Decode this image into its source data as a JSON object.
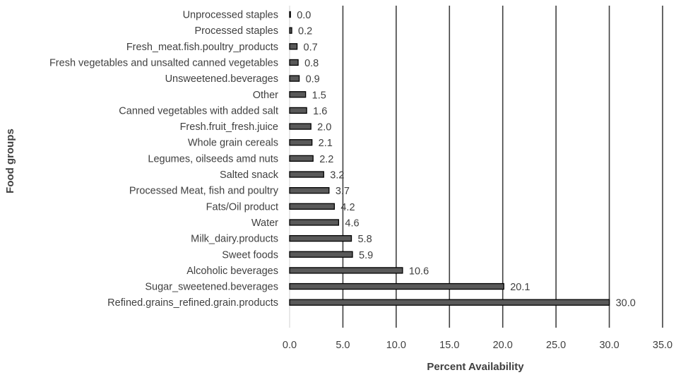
{
  "chart_data": {
    "type": "bar",
    "orientation": "horizontal",
    "title": "",
    "xlabel": "Percent Availability",
    "ylabel": "Food groups",
    "xlim": [
      0,
      35
    ],
    "x_ticks": [
      "0.0",
      "5.0",
      "10.0",
      "15.0",
      "20.0",
      "25.0",
      "30.0",
      "35.0"
    ],
    "grid": "vertical",
    "categories": [
      "Unprocessed staples",
      "Processed staples",
      "Fresh_meat.fish.poultry_products",
      "Fresh vegetables and unsalted canned vegetables",
      "Unsweetened.beverages",
      "Other",
      "Canned vegetables with added salt",
      "Fresh.fruit_fresh.juice",
      "Whole grain cereals",
      "Legumes, oilseeds amd nuts",
      "Salted snack",
      "Processed Meat, fish and poultry",
      "Fats/Oil product",
      "Water",
      "Milk_dairy.products",
      "Sweet foods",
      "Alcoholic beverages",
      "Sugar_sweetened.beverages",
      "Refined.grains_refined.grain.products"
    ],
    "values": [
      0.0,
      0.2,
      0.7,
      0.8,
      0.9,
      1.5,
      1.6,
      2.0,
      2.1,
      2.2,
      3.2,
      3.7,
      4.2,
      4.6,
      5.8,
      5.9,
      10.6,
      20.1,
      30.0
    ],
    "value_labels": [
      "0.0",
      "0.2",
      "0.7",
      "0.8",
      "0.9",
      "1.5",
      "1.6",
      "2.0",
      "2.1",
      "2.2",
      "3.2",
      "3.7",
      "4.2",
      "4.6",
      "5.8",
      "5.9",
      "10.6",
      "20.1",
      "30.0"
    ],
    "colors": {
      "bar_fill": "#595959",
      "bar_stroke": "#000000",
      "grid": "#404040",
      "text": "#404040"
    }
  }
}
